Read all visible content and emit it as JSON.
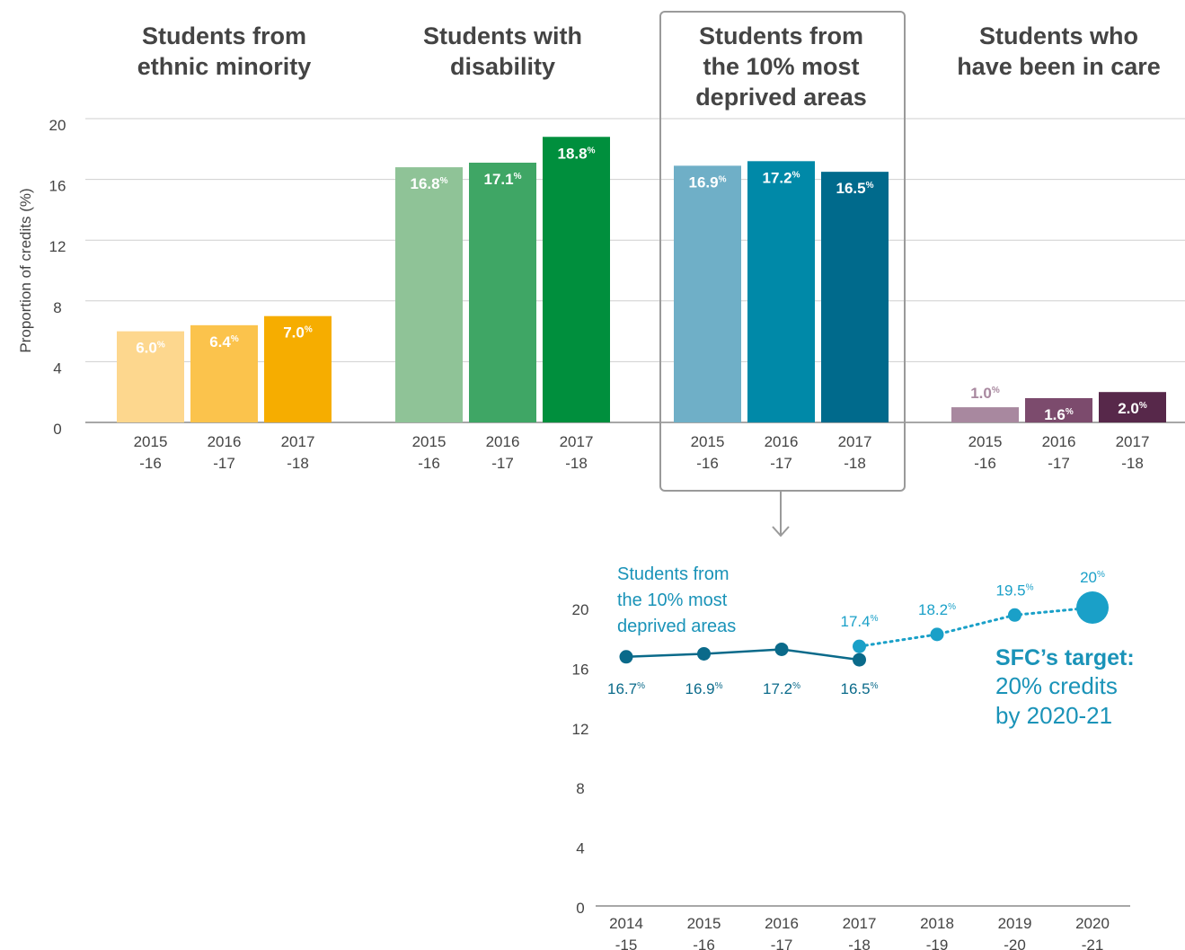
{
  "chart_data": [
    {
      "type": "bar",
      "ylabel": "Proportion of credits (%)",
      "ylim": [
        0,
        20
      ],
      "yticks": [
        0,
        4,
        8,
        12,
        16,
        20
      ],
      "grid": true,
      "groups": [
        {
          "title_lines": [
            "Students from",
            "ethnic minority"
          ],
          "categories": [
            [
              "2015",
              "-16"
            ],
            [
              "2016",
              "-17"
            ],
            [
              "2017",
              "-18"
            ]
          ],
          "values": [
            6.0,
            6.4,
            7.0
          ],
          "labels": [
            "6.0",
            "6.4",
            "7.0"
          ],
          "colors": [
            "#fdd78e",
            "#fbc34c",
            "#f6ad00"
          ],
          "label_colors": [
            "#ffffff",
            "#ffffff",
            "#ffffff"
          ],
          "label_position": "inside",
          "highlighted": false
        },
        {
          "title_lines": [
            "Students with",
            "disability"
          ],
          "categories": [
            [
              "2015",
              "-16"
            ],
            [
              "2016",
              "-17"
            ],
            [
              "2017",
              "-18"
            ]
          ],
          "values": [
            16.8,
            17.1,
            18.8
          ],
          "labels": [
            "16.8",
            "17.1",
            "18.8"
          ],
          "colors": [
            "#8fc397",
            "#3fa665",
            "#008f3d"
          ],
          "label_colors": [
            "#ffffff",
            "#ffffff",
            "#ffffff"
          ],
          "label_position": "inside",
          "highlighted": false
        },
        {
          "title_lines": [
            "Students from",
            "the 10% most",
            "deprived areas"
          ],
          "categories": [
            [
              "2015",
              "-16"
            ],
            [
              "2016",
              "-17"
            ],
            [
              "2017",
              "-18"
            ]
          ],
          "values": [
            16.9,
            17.2,
            16.5
          ],
          "labels": [
            "16.9",
            "17.2",
            "16.5"
          ],
          "colors": [
            "#6fafc7",
            "#0089a8",
            "#006a8c"
          ],
          "label_colors": [
            "#ffffff",
            "#ffffff",
            "#ffffff"
          ],
          "label_position": "inside",
          "highlighted": true
        },
        {
          "title_lines": [
            "Students who",
            "have been in care"
          ],
          "categories": [
            [
              "2015",
              "-16"
            ],
            [
              "2016",
              "-17"
            ],
            [
              "2017",
              "-18"
            ]
          ],
          "values": [
            1.0,
            1.6,
            2.0
          ],
          "labels": [
            "1.0",
            "1.6",
            "2.0"
          ],
          "colors": [
            "#a8889f",
            "#7c4b6d",
            "#57284a"
          ],
          "label_colors": [
            "#a8889f",
            "#ffffff",
            "#ffffff"
          ],
          "label_position": "mixed",
          "highlighted": false
        }
      ]
    },
    {
      "type": "line",
      "series_label_lines": [
        "Students from",
        "the 10% most",
        "deprived areas"
      ],
      "ylim": [
        0,
        20
      ],
      "yticks": [
        0,
        4,
        8,
        12,
        16,
        20
      ],
      "x": [
        [
          "2014",
          "-15"
        ],
        [
          "2015",
          "-16"
        ],
        [
          "2016",
          "-17"
        ],
        [
          "2017",
          "-18"
        ],
        [
          "2018",
          "-19"
        ],
        [
          "2019",
          "-20"
        ],
        [
          "2020",
          "-21"
        ]
      ],
      "series": [
        {
          "style": "solid",
          "color": "#0a6a8a",
          "points": [
            {
              "xi": 0,
              "y": 16.7,
              "label": "16.7"
            },
            {
              "xi": 1,
              "y": 16.9,
              "label": "16.9"
            },
            {
              "xi": 2,
              "y": 17.2,
              "label": "17.2"
            },
            {
              "xi": 3,
              "y": 16.5,
              "label": "16.5"
            }
          ]
        },
        {
          "style": "dotted",
          "color": "#1aa0c8",
          "points": [
            {
              "xi": 3,
              "y": 17.4,
              "label": "17.4"
            },
            {
              "xi": 4,
              "y": 18.2,
              "label": "18.2"
            },
            {
              "xi": 5,
              "y": 19.5,
              "label": "19.5"
            },
            {
              "xi": 6,
              "y": 20,
              "label": "20"
            }
          ]
        }
      ],
      "annotation": {
        "bold": "SFC’s target:",
        "lines": [
          "20% credits",
          "by 2020-21"
        ]
      }
    }
  ]
}
